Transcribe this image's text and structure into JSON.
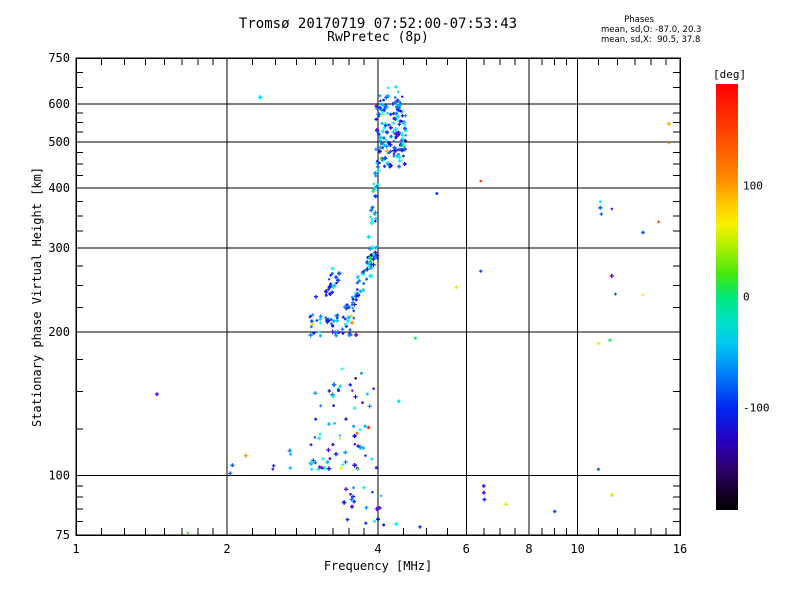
{
  "figure": {
    "title_line1": "Tromsø 20170719 07:52:00-07:53:43",
    "title_line2": "RwPretec (8p)",
    "phases_header": "Phases",
    "phases_line_o": "mean, sd,O: -87.0, 20.3",
    "phases_line_x": "mean, sd,X:  90.5, 37.8"
  },
  "colors": {
    "background": "#ffffff",
    "axis": "#000000",
    "text": "#000000"
  },
  "chart_data": {
    "type": "scatter",
    "title": "Tromsø 20170719 07:52:00-07:53:43",
    "subtitle": "RwPretec (8p)",
    "xlabel": "Frequency [MHz]",
    "ylabel": "Stationary phase Virtual Height [km]",
    "x_scale": "log",
    "x_range": [
      1,
      16
    ],
    "y_scale": "log",
    "y_range": [
      75,
      750
    ],
    "grid": true,
    "x_ticks": {
      "major": [
        1,
        2,
        4,
        6,
        8,
        10,
        16
      ],
      "labels": [
        "1",
        "2",
        "4",
        "6",
        "8",
        "10",
        "16"
      ],
      "minor": [
        1.125,
        1.25,
        1.375,
        1.5,
        1.625,
        1.75,
        1.875,
        2.25,
        2.5,
        2.75,
        3,
        3.25,
        3.5,
        3.75,
        4.5,
        5,
        5.5,
        6.5,
        7,
        7.5,
        8.5,
        9,
        9.5,
        11,
        12,
        13,
        14,
        15
      ],
      "grid": [
        2,
        4,
        6,
        8,
        10
      ]
    },
    "y_ticks": {
      "major": [
        75,
        100,
        200,
        300,
        400,
        500,
        600,
        750
      ],
      "labels": [
        "75",
        "100",
        "200",
        "300",
        "400",
        "500",
        "600",
        "750"
      ],
      "minor": [
        80,
        85,
        90,
        95,
        125,
        150,
        175,
        225,
        250,
        275,
        325,
        350,
        375,
        425,
        450,
        475,
        525,
        550,
        575,
        650,
        700
      ],
      "grid": [
        100,
        200,
        300,
        400,
        500,
        600
      ]
    },
    "colorbar": {
      "label": "[deg]",
      "tick_values": [
        100,
        0,
        -100
      ],
      "tick_labels": [
        "100",
        "0",
        "-100"
      ],
      "value_range": [
        192,
        -192
      ],
      "gradient": [
        "#ff0000 0%",
        "#ff3c00 10%",
        "#ff8800 22%",
        "#ffc800 28%",
        "#f8f000 33%",
        "#b0f000 38%",
        "#40e810 45%",
        "#00e87a 50%",
        "#00e0c8 56%",
        "#00c8f0 61%",
        "#0080f8 68%",
        "#0028f0 76%",
        "#2800c0 84%",
        "#300070 90%",
        "#180030 95%",
        "#000000 100%"
      ]
    },
    "stats": {
      "o_mean": -87.0,
      "o_sd": 20.3,
      "x_mean": 90.5,
      "x_sd": 37.8
    },
    "seed": 7,
    "outlier_points": [
      [
        1.45,
        148,
        -140
      ],
      [
        1.67,
        75.8,
        55
      ],
      [
        2.18,
        110,
        140
      ],
      [
        2.05,
        105,
        -90
      ],
      [
        2.03,
        101,
        -95
      ],
      [
        2.33,
        620,
        -50
      ],
      [
        3.83,
        126,
        180
      ],
      [
        3.92,
        152,
        -130
      ],
      [
        4.4,
        143,
        -45
      ],
      [
        3.55,
        209,
        150
      ],
      [
        4.75,
        194,
        10
      ],
      [
        4.85,
        78,
        -110
      ],
      [
        5.24,
        390,
        -100
      ],
      [
        5.73,
        248,
        100
      ],
      [
        6.41,
        268,
        -95
      ],
      [
        6.41,
        414,
        178
      ],
      [
        6.5,
        95,
        -120
      ],
      [
        6.5,
        92,
        -140
      ],
      [
        6.52,
        89,
        -110
      ],
      [
        7.2,
        87,
        100
      ],
      [
        9.0,
        84,
        -90
      ],
      [
        11.0,
        103,
        -85
      ],
      [
        11.7,
        91,
        100
      ],
      [
        11.0,
        189,
        105
      ],
      [
        11.6,
        192,
        20
      ],
      [
        11.1,
        375,
        -40
      ],
      [
        11.1,
        364,
        -85
      ],
      [
        11.15,
        353,
        -95
      ],
      [
        11.7,
        362,
        -148
      ],
      [
        14.5,
        340,
        170
      ],
      [
        13.5,
        323,
        -90
      ],
      [
        11.7,
        262,
        -150
      ],
      [
        11.9,
        240,
        -100
      ],
      [
        13.5,
        239,
        120
      ],
      [
        15.2,
        546,
        140
      ],
      [
        15.2,
        497,
        135
      ]
    ],
    "clusters": [
      {
        "name": "f-region-cap",
        "shape": "box",
        "count": 16,
        "f_min": 4.03,
        "f_max": 4.5,
        "h_min": 598,
        "h_max": 656,
        "phase_mean": -85,
        "phase_sd": 40,
        "warm_frac": 0.05
      },
      {
        "name": "f-region-blob",
        "shape": "box",
        "count": 135,
        "f_min": 3.96,
        "f_max": 4.55,
        "h_min": 442,
        "h_max": 600,
        "hole": {
          "f_min": 4.02,
          "f_max": 4.24,
          "h_min": 512,
          "h_max": 566,
          "keep": 0.3
        },
        "phase_mean": -95,
        "phase_sd": 38,
        "warm_frac": 0.03
      },
      {
        "name": "f-trace-stalk",
        "shape": "line",
        "count": 24,
        "f_from": 3.86,
        "h_from": 300,
        "f_to": 4.0,
        "h_to": 440,
        "f_jitter": 0.05,
        "h_jitter": 8,
        "phase_mean": -70,
        "phase_sd": 45,
        "warm_frac": 0
      },
      {
        "name": "cusp-bottom-arc",
        "shape": "box",
        "count": 48,
        "f_min": 2.92,
        "f_max": 3.62,
        "h_min": 196,
        "h_max": 217,
        "phase_mean": -90,
        "phase_sd": 35,
        "warm_frac": 0.04
      },
      {
        "name": "cusp-rising-branch",
        "shape": "line",
        "count": 58,
        "f_from": 3.45,
        "h_from": 212,
        "f_to": 3.97,
        "h_to": 298,
        "f_jitter": 0.07,
        "h_jitter": 9,
        "phase_mean": -92,
        "phase_sd": 35,
        "warm_frac": 0.02
      },
      {
        "name": "cusp-left-rim",
        "shape": "line",
        "count": 22,
        "f_from": 3.04,
        "h_from": 226,
        "f_to": 3.32,
        "h_to": 266,
        "f_jitter": 0.07,
        "h_jitter": 12,
        "phase_mean": -100,
        "phase_sd": 35,
        "warm_frac": 0
      },
      {
        "name": "sporadic-e-scatter",
        "shape": "tri",
        "count": 70,
        "f_min": 2.4,
        "f_max": 4.2,
        "h_min": 103,
        "h_max": 168,
        "phase_mean": -85,
        "phase_sd": 45,
        "warm_frac": 0.07
      },
      {
        "name": "d-region-bottom",
        "shape": "box",
        "count": 20,
        "f_min": 3.42,
        "f_max": 4.4,
        "h_min": 78,
        "h_max": 95,
        "phase_mean": -100,
        "phase_sd": 40,
        "warm_frac": 0
      }
    ]
  }
}
